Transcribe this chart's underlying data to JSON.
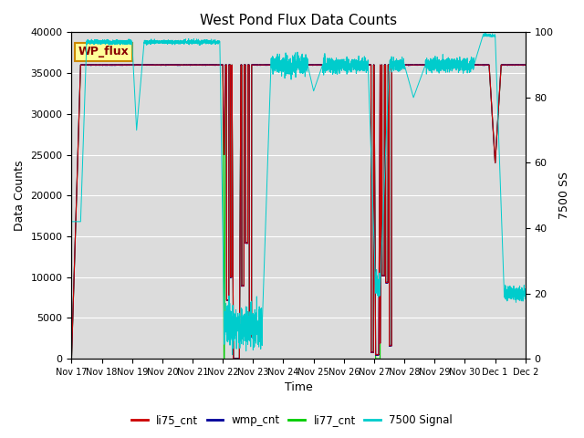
{
  "title": "West Pond Flux Data Counts",
  "xlabel": "Time",
  "ylabel_left": "Data Counts",
  "ylabel_right": "7500 SS",
  "ylim_left": [
    0,
    40000
  ],
  "ylim_right": [
    0,
    100
  ],
  "background_color": "#dcdcdc",
  "legend_box_label": "WP_flux",
  "legend_box_facecolor": "#ffff99",
  "legend_box_edgecolor": "#cc8800",
  "legend_box_textcolor": "#880000",
  "colors": {
    "li75_cnt": "#cc0000",
    "wmp_cnt": "#000099",
    "li77_cnt": "#00cc00",
    "signal7500": "#00cccc"
  },
  "tick_labels": [
    "Nov 17",
    "Nov 18",
    "Nov 19",
    "Nov 20",
    "Nov 21",
    "Nov 22",
    "Nov 23",
    "Nov 24",
    "Nov 25",
    "Nov 26",
    "Nov 27",
    "Nov 28",
    "Nov 29",
    "Nov 30",
    "Dec 1",
    "Dec 2"
  ]
}
